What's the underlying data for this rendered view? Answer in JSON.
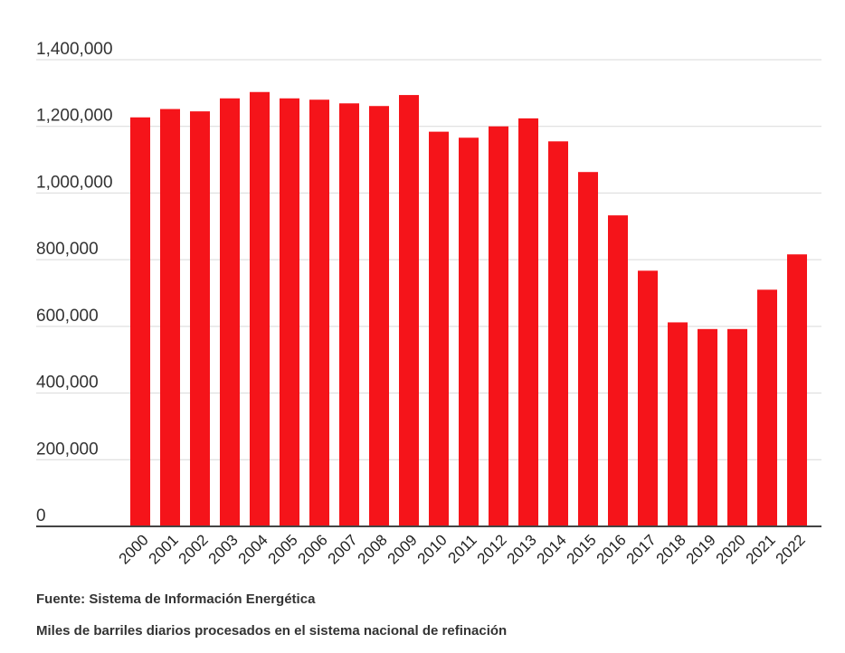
{
  "chart_data": {
    "type": "bar",
    "categories": [
      "2000",
      "2001",
      "2002",
      "2003",
      "2004",
      "2005",
      "2006",
      "2007",
      "2008",
      "2009",
      "2010",
      "2011",
      "2012",
      "2013",
      "2014",
      "2015",
      "2016",
      "2017",
      "2018",
      "2019",
      "2020",
      "2021",
      "2022"
    ],
    "values": [
      1227000,
      1252000,
      1245000,
      1284000,
      1303000,
      1284000,
      1280000,
      1269000,
      1261000,
      1294000,
      1184000,
      1166000,
      1200000,
      1224000,
      1155000,
      1063000,
      933000,
      767000,
      612000,
      592000,
      592000,
      710000,
      816000
    ],
    "ylim": [
      0,
      1400000
    ],
    "yticks": [
      0,
      200000,
      400000,
      600000,
      800000,
      1000000,
      1200000,
      1400000
    ],
    "ytick_labels": [
      "0",
      "200,000",
      "400,000",
      "600,000",
      "800,000",
      "1,000,000",
      "1,200,000",
      "1,400,000"
    ],
    "bar_color": "#f5141a",
    "grid": true
  },
  "footer": {
    "source": "Fuente:  Sistema de Información Energética",
    "note": "Miles de barriles diarios procesados en el sistema nacional de refinación"
  }
}
